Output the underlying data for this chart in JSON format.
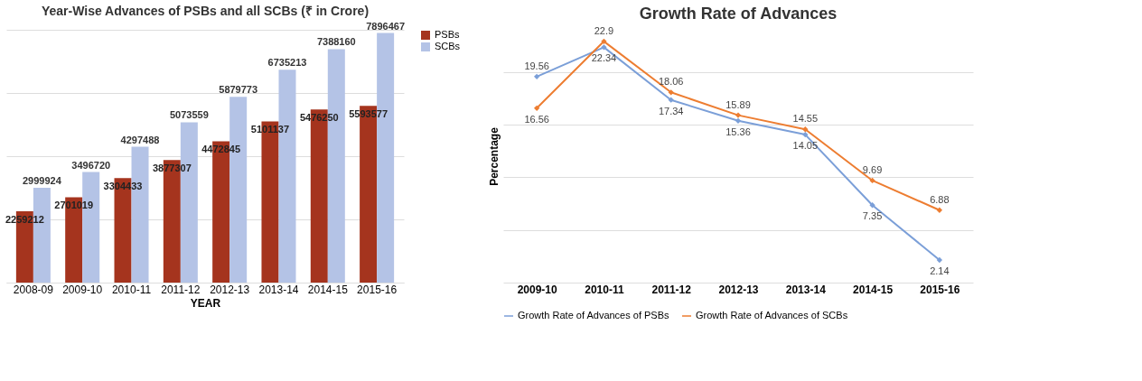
{
  "chart_data": [
    {
      "type": "bar",
      "title": "Year-Wise Advances of PSBs and all SCBs (₹ in Crore)",
      "xlabel": "YEAR",
      "categories": [
        "2008-09",
        "2009-10",
        "2010-11",
        "2011-12",
        "2012-13",
        "2013-14",
        "2014-15",
        "2015-16"
      ],
      "series": [
        {
          "name": "PSBs",
          "color": "#a5341e",
          "values": [
            2259212,
            2701019,
            3304433,
            3877307,
            4472845,
            5101137,
            5476250,
            5593577
          ]
        },
        {
          "name": "SCBs",
          "color": "#b4c3e6",
          "values": [
            2999924,
            3496720,
            4297488,
            5073559,
            5879773,
            6735213,
            7388160,
            7896467
          ]
        }
      ],
      "tick_labels": "x",
      "grid": "y",
      "legend": "right",
      "data_labels": true
    },
    {
      "type": "line",
      "title": "Growth Rate of Advances",
      "ylabel": "Percentage",
      "categories": [
        "2009-10",
        "2010-11",
        "2011-12",
        "2012-13",
        "2013-14",
        "2014-15",
        "2015-16"
      ],
      "series": [
        {
          "name": "Growth Rate of Advances of PSBs",
          "color": "#7b9fd8",
          "values": [
            19.56,
            22.34,
            17.34,
            15.36,
            14.05,
            7.35,
            2.14
          ]
        },
        {
          "name": "Growth Rate of Advances of SCBs",
          "color": "#ed7d31",
          "values": [
            16.56,
            22.9,
            18.06,
            15.89,
            14.55,
            9.69,
            6.88
          ]
        }
      ],
      "tick_labels": "x",
      "grid": "y",
      "legend": "bottom",
      "marker": "diamond",
      "line_style": "solid",
      "data_labels": true
    }
  ]
}
